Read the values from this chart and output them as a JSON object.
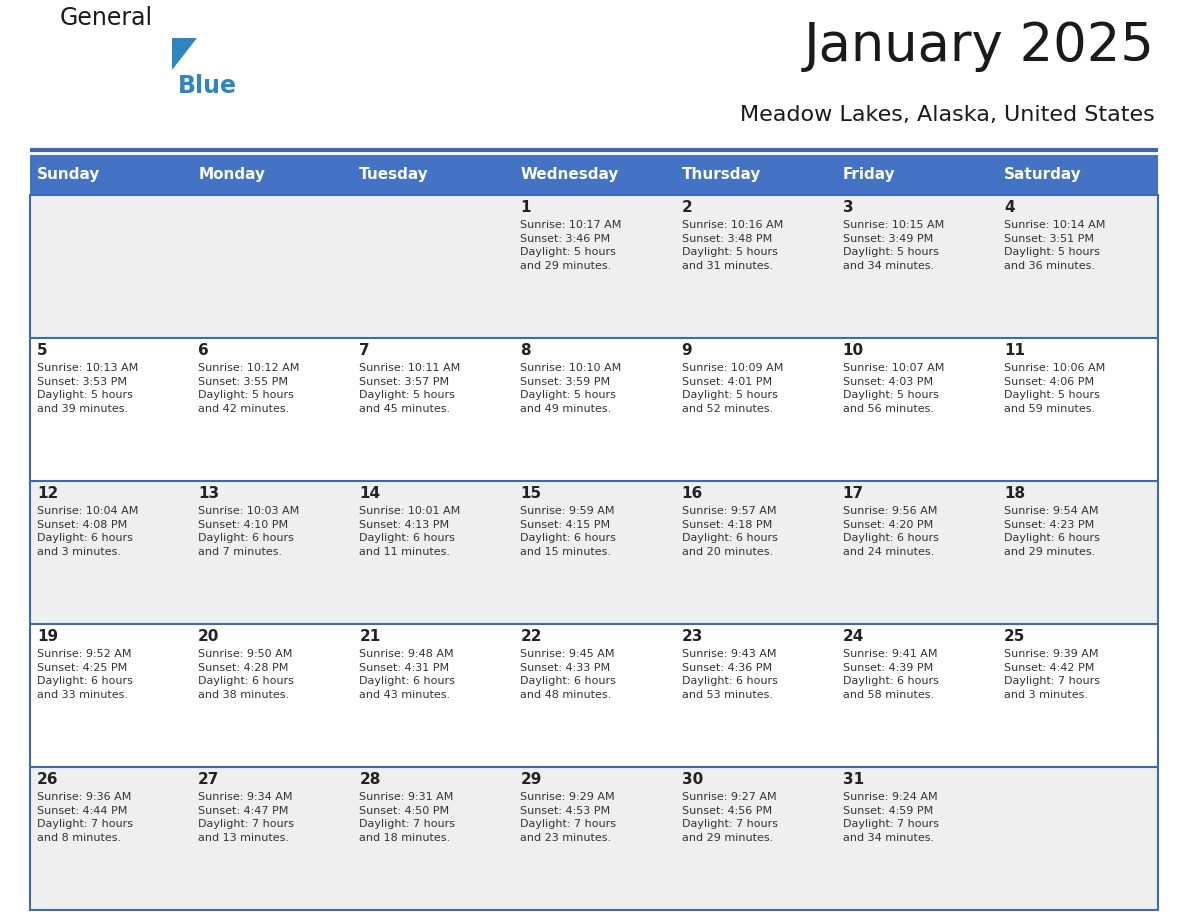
{
  "title": "January 2025",
  "subtitle": "Meadow Lakes, Alaska, United States",
  "days_of_week": [
    "Sunday",
    "Monday",
    "Tuesday",
    "Wednesday",
    "Thursday",
    "Friday",
    "Saturday"
  ],
  "header_bg": "#4472C4",
  "header_text_color": "#FFFFFF",
  "cell_bg_odd": "#EFEFEF",
  "cell_bg_even": "#FFFFFF",
  "border_color": "#3D6AAF",
  "text_color": "#333333",
  "day_number_color": "#222222",
  "logo_general_color": "#1a1a1a",
  "logo_blue_color": "#2E86C1",
  "logo_triangle_color": "#2E86C1",
  "calendar": [
    [
      null,
      null,
      null,
      {
        "day": 1,
        "sunrise": "10:17 AM",
        "sunset": "3:46 PM",
        "daylight": "5 hours",
        "daylight2": "and 29 minutes."
      },
      {
        "day": 2,
        "sunrise": "10:16 AM",
        "sunset": "3:48 PM",
        "daylight": "5 hours",
        "daylight2": "and 31 minutes."
      },
      {
        "day": 3,
        "sunrise": "10:15 AM",
        "sunset": "3:49 PM",
        "daylight": "5 hours",
        "daylight2": "and 34 minutes."
      },
      {
        "day": 4,
        "sunrise": "10:14 AM",
        "sunset": "3:51 PM",
        "daylight": "5 hours",
        "daylight2": "and 36 minutes."
      }
    ],
    [
      {
        "day": 5,
        "sunrise": "10:13 AM",
        "sunset": "3:53 PM",
        "daylight": "5 hours",
        "daylight2": "and 39 minutes."
      },
      {
        "day": 6,
        "sunrise": "10:12 AM",
        "sunset": "3:55 PM",
        "daylight": "5 hours",
        "daylight2": "and 42 minutes."
      },
      {
        "day": 7,
        "sunrise": "10:11 AM",
        "sunset": "3:57 PM",
        "daylight": "5 hours",
        "daylight2": "and 45 minutes."
      },
      {
        "day": 8,
        "sunrise": "10:10 AM",
        "sunset": "3:59 PM",
        "daylight": "5 hours",
        "daylight2": "and 49 minutes."
      },
      {
        "day": 9,
        "sunrise": "10:09 AM",
        "sunset": "4:01 PM",
        "daylight": "5 hours",
        "daylight2": "and 52 minutes."
      },
      {
        "day": 10,
        "sunrise": "10:07 AM",
        "sunset": "4:03 PM",
        "daylight": "5 hours",
        "daylight2": "and 56 minutes."
      },
      {
        "day": 11,
        "sunrise": "10:06 AM",
        "sunset": "4:06 PM",
        "daylight": "5 hours",
        "daylight2": "and 59 minutes."
      }
    ],
    [
      {
        "day": 12,
        "sunrise": "10:04 AM",
        "sunset": "4:08 PM",
        "daylight": "6 hours",
        "daylight2": "and 3 minutes."
      },
      {
        "day": 13,
        "sunrise": "10:03 AM",
        "sunset": "4:10 PM",
        "daylight": "6 hours",
        "daylight2": "and 7 minutes."
      },
      {
        "day": 14,
        "sunrise": "10:01 AM",
        "sunset": "4:13 PM",
        "daylight": "6 hours",
        "daylight2": "and 11 minutes."
      },
      {
        "day": 15,
        "sunrise": "9:59 AM",
        "sunset": "4:15 PM",
        "daylight": "6 hours",
        "daylight2": "and 15 minutes."
      },
      {
        "day": 16,
        "sunrise": "9:57 AM",
        "sunset": "4:18 PM",
        "daylight": "6 hours",
        "daylight2": "and 20 minutes."
      },
      {
        "day": 17,
        "sunrise": "9:56 AM",
        "sunset": "4:20 PM",
        "daylight": "6 hours",
        "daylight2": "and 24 minutes."
      },
      {
        "day": 18,
        "sunrise": "9:54 AM",
        "sunset": "4:23 PM",
        "daylight": "6 hours",
        "daylight2": "and 29 minutes."
      }
    ],
    [
      {
        "day": 19,
        "sunrise": "9:52 AM",
        "sunset": "4:25 PM",
        "daylight": "6 hours",
        "daylight2": "and 33 minutes."
      },
      {
        "day": 20,
        "sunrise": "9:50 AM",
        "sunset": "4:28 PM",
        "daylight": "6 hours",
        "daylight2": "and 38 minutes."
      },
      {
        "day": 21,
        "sunrise": "9:48 AM",
        "sunset": "4:31 PM",
        "daylight": "6 hours",
        "daylight2": "and 43 minutes."
      },
      {
        "day": 22,
        "sunrise": "9:45 AM",
        "sunset": "4:33 PM",
        "daylight": "6 hours",
        "daylight2": "and 48 minutes."
      },
      {
        "day": 23,
        "sunrise": "9:43 AM",
        "sunset": "4:36 PM",
        "daylight": "6 hours",
        "daylight2": "and 53 minutes."
      },
      {
        "day": 24,
        "sunrise": "9:41 AM",
        "sunset": "4:39 PM",
        "daylight": "6 hours",
        "daylight2": "and 58 minutes."
      },
      {
        "day": 25,
        "sunrise": "9:39 AM",
        "sunset": "4:42 PM",
        "daylight": "7 hours",
        "daylight2": "and 3 minutes."
      }
    ],
    [
      {
        "day": 26,
        "sunrise": "9:36 AM",
        "sunset": "4:44 PM",
        "daylight": "7 hours",
        "daylight2": "and 8 minutes."
      },
      {
        "day": 27,
        "sunrise": "9:34 AM",
        "sunset": "4:47 PM",
        "daylight": "7 hours",
        "daylight2": "and 13 minutes."
      },
      {
        "day": 28,
        "sunrise": "9:31 AM",
        "sunset": "4:50 PM",
        "daylight": "7 hours",
        "daylight2": "and 18 minutes."
      },
      {
        "day": 29,
        "sunrise": "9:29 AM",
        "sunset": "4:53 PM",
        "daylight": "7 hours",
        "daylight2": "and 23 minutes."
      },
      {
        "day": 30,
        "sunrise": "9:27 AM",
        "sunset": "4:56 PM",
        "daylight": "7 hours",
        "daylight2": "and 29 minutes."
      },
      {
        "day": 31,
        "sunrise": "9:24 AM",
        "sunset": "4:59 PM",
        "daylight": "7 hours",
        "daylight2": "and 34 minutes."
      },
      null
    ]
  ]
}
